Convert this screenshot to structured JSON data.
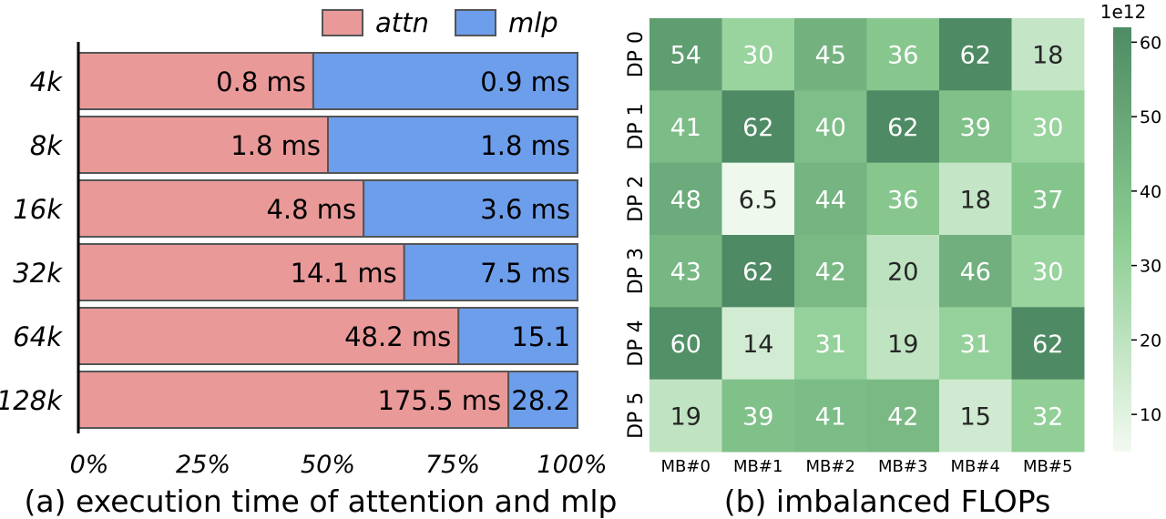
{
  "chart_data": [
    {
      "type": "bar",
      "stacked": "percent",
      "orientation": "horizontal",
      "caption": "(a) execution time of attention and mlp",
      "categories": [
        "4k",
        "8k",
        "16k",
        "32k",
        "64k",
        "128k"
      ],
      "series": [
        {
          "name": "attn",
          "color": "#ea9999",
          "values": [
            0.8,
            1.8,
            4.8,
            14.1,
            48.2,
            175.5
          ],
          "labels": [
            "0.8 ms",
            "1.8 ms",
            "4.8 ms",
            "14.1 ms",
            "48.2 ms",
            "175.5 ms"
          ]
        },
        {
          "name": "mlp",
          "color": "#6d9eeb",
          "values": [
            0.9,
            1.8,
            3.6,
            7.5,
            15.1,
            28.2
          ],
          "labels": [
            "0.9 ms",
            "1.8 ms",
            "3.6 ms",
            "7.5 ms",
            "15.1",
            "28.2"
          ]
        }
      ],
      "xticks": [
        "0%",
        "25%",
        "50%",
        "75%",
        "100%"
      ],
      "xlim": [
        0,
        100
      ],
      "legend": "top-right"
    },
    {
      "type": "heatmap",
      "caption": "(b) imbalanced FLOPs",
      "rows": [
        "DP 0",
        "DP 1",
        "DP 2",
        "DP 3",
        "DP 4",
        "DP 5"
      ],
      "cols": [
        "MB#0",
        "MB#1",
        "MB#2",
        "MB#3",
        "MB#4",
        "MB#5"
      ],
      "values": [
        [
          54,
          30,
          45,
          36,
          62,
          18
        ],
        [
          41,
          62,
          40,
          62,
          39,
          30
        ],
        [
          48,
          6.5,
          44,
          36,
          18,
          37
        ],
        [
          43,
          62,
          42,
          20,
          46,
          30
        ],
        [
          60,
          14,
          31,
          19,
          31,
          62
        ],
        [
          19,
          39,
          41,
          42,
          15,
          32
        ]
      ],
      "colorbar": {
        "label": "1e12",
        "ticks": [
          10,
          20,
          30,
          40,
          50,
          60
        ],
        "range": [
          5,
          62
        ],
        "low_color": "#f3faf1",
        "high_color": "#4e8b64"
      }
    }
  ]
}
